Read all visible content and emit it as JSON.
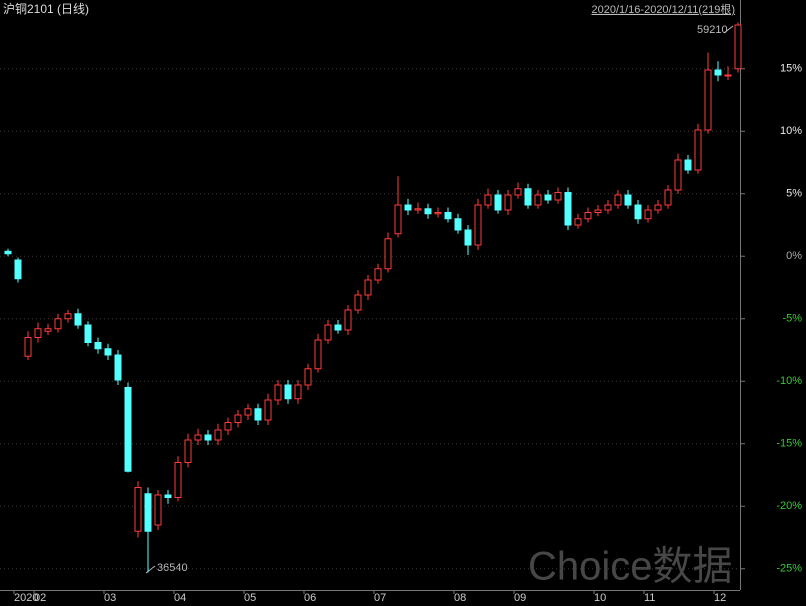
{
  "chart_data": {
    "type": "candlestick",
    "title": "沪铜2101 (日线)",
    "subtitle": "2020/1/16-2020/12/11(219根)",
    "watermark": "Choice数据",
    "annotations": [
      "59210",
      "36540"
    ],
    "up_color": "#ff3c3c",
    "down_color": "#54ffff",
    "grid": true,
    "ylim": [
      -26.7,
      20.5
    ],
    "yticks": [
      {
        "value": 15,
        "label": "15%"
      },
      {
        "value": 10,
        "label": "10%"
      },
      {
        "value": 5,
        "label": "5%"
      },
      {
        "value": 0,
        "label": "0%"
      },
      {
        "value": -5,
        "label": "-5%"
      },
      {
        "value": -10,
        "label": "-10%"
      },
      {
        "value": -15,
        "label": "-15%"
      },
      {
        "value": -20,
        "label": "-20%"
      },
      {
        "value": -25,
        "label": "-25%"
      }
    ],
    "categories": [
      null,
      "2020",
      null,
      "02",
      null,
      null,
      null,
      null,
      null,
      null,
      "03",
      null,
      null,
      null,
      null,
      null,
      null,
      "04",
      null,
      null,
      null,
      null,
      null,
      null,
      "05",
      null,
      null,
      null,
      null,
      null,
      "06",
      null,
      null,
      null,
      null,
      null,
      null,
      "07",
      null,
      null,
      null,
      null,
      null,
      null,
      null,
      "08",
      null,
      null,
      null,
      null,
      null,
      "09",
      null,
      null,
      null,
      null,
      null,
      null,
      null,
      "10",
      null,
      null,
      null,
      null,
      "11",
      null,
      null,
      null,
      null,
      null,
      null,
      "12",
      null,
      null
    ],
    "open": [
      0.4,
      -0.3,
      -8.0,
      -6.5,
      -6.0,
      -5.8,
      -5.0,
      -4.6,
      -5.5,
      -6.9,
      -7.4,
      -7.9,
      -10.5,
      -22.0,
      -19.0,
      -21.5,
      -19.1,
      -19.3,
      -16.5,
      -14.7,
      -14.3,
      -14.7,
      -13.9,
      -13.3,
      -12.7,
      -12.2,
      -13.1,
      -11.5,
      -10.3,
      -11.4,
      -10.3,
      -9.0,
      -6.7,
      -5.5,
      -5.9,
      -4.3,
      -3.1,
      -1.9,
      -1.0,
      1.8,
      4.1,
      3.7,
      3.8,
      3.4,
      3.5,
      3.0,
      2.1,
      0.9,
      4.1,
      4.9,
      3.7,
      4.9,
      5.4,
      4.1,
      4.9,
      4.5,
      5.1,
      2.5,
      3.0,
      3.5,
      3.7,
      4.1,
      4.9,
      4.1,
      3.0,
      3.7,
      4.1,
      5.3,
      7.7,
      6.9,
      10.1,
      14.9,
      14.5,
      15.0
    ],
    "high": [
      0.6,
      -0.1,
      -6.0,
      -5.3,
      -5.4,
      -4.6,
      -4.3,
      -4.2,
      -5.2,
      -6.5,
      -7.0,
      -7.5,
      -10.1,
      -18.0,
      -18.5,
      -18.7,
      -18.7,
      -16.0,
      -14.2,
      -13.8,
      -13.9,
      -13.4,
      -12.9,
      -12.3,
      -11.8,
      -11.8,
      -11.0,
      -9.9,
      -9.9,
      -9.9,
      -8.6,
      -6.2,
      -5.1,
      -5.1,
      -3.9,
      -2.7,
      -1.5,
      -0.6,
      1.9,
      6.4,
      4.6,
      4.3,
      4.2,
      3.9,
      3.9,
      3.4,
      2.5,
      4.6,
      5.4,
      5.3,
      5.3,
      5.9,
      5.8,
      5.3,
      5.3,
      5.5,
      5.5,
      3.4,
      3.9,
      4.1,
      4.5,
      5.3,
      5.3,
      4.5,
      4.1,
      4.5,
      5.7,
      8.2,
      8.1,
      10.6,
      16.3,
      15.6,
      15.2,
      18.7
    ],
    "low": [
      0.0,
      -2.1,
      -8.3,
      -6.9,
      -6.3,
      -6.1,
      -5.3,
      -5.8,
      -7.2,
      -7.8,
      -8.3,
      -10.3,
      -17.3,
      -22.5,
      -25.3,
      -21.9,
      -19.8,
      -19.6,
      -16.9,
      -15.1,
      -15.1,
      -15.1,
      -14.3,
      -13.7,
      -13.1,
      -13.5,
      -13.5,
      -11.9,
      -11.8,
      -11.8,
      -10.7,
      -9.3,
      -7.0,
      -6.2,
      -6.3,
      -4.6,
      -3.5,
      -2.2,
      -1.3,
      1.5,
      3.3,
      3.4,
      3.0,
      3.1,
      2.7,
      1.8,
      0.1,
      0.5,
      3.8,
      3.4,
      3.3,
      4.6,
      3.8,
      3.8,
      4.2,
      4.2,
      2.1,
      2.2,
      2.7,
      3.2,
      3.4,
      3.8,
      3.8,
      2.6,
      2.7,
      3.4,
      3.8,
      5.0,
      6.6,
      6.6,
      9.8,
      14.0,
      14.1,
      14.7
    ],
    "close": [
      0.2,
      -1.8,
      -6.5,
      -5.8,
      -5.8,
      -5.0,
      -4.6,
      -5.5,
      -6.9,
      -7.4,
      -7.9,
      -9.9,
      -17.2,
      -18.5,
      -22.0,
      -19.1,
      -19.3,
      -16.5,
      -14.7,
      -14.3,
      -14.7,
      -13.9,
      -13.3,
      -12.7,
      -12.2,
      -13.1,
      -11.5,
      -10.3,
      -11.4,
      -10.3,
      -9.0,
      -6.7,
      -5.5,
      -5.9,
      -4.3,
      -3.1,
      -1.9,
      -1.0,
      1.4,
      4.1,
      3.7,
      3.8,
      3.4,
      3.5,
      3.0,
      2.1,
      0.9,
      4.1,
      4.9,
      3.7,
      4.9,
      5.4,
      4.1,
      4.9,
      4.5,
      5.1,
      2.5,
      3.0,
      3.5,
      3.7,
      4.1,
      4.9,
      4.1,
      3.0,
      3.7,
      4.1,
      5.3,
      7.7,
      6.9,
      10.1,
      14.9,
      14.5,
      14.5,
      18.5
    ]
  }
}
